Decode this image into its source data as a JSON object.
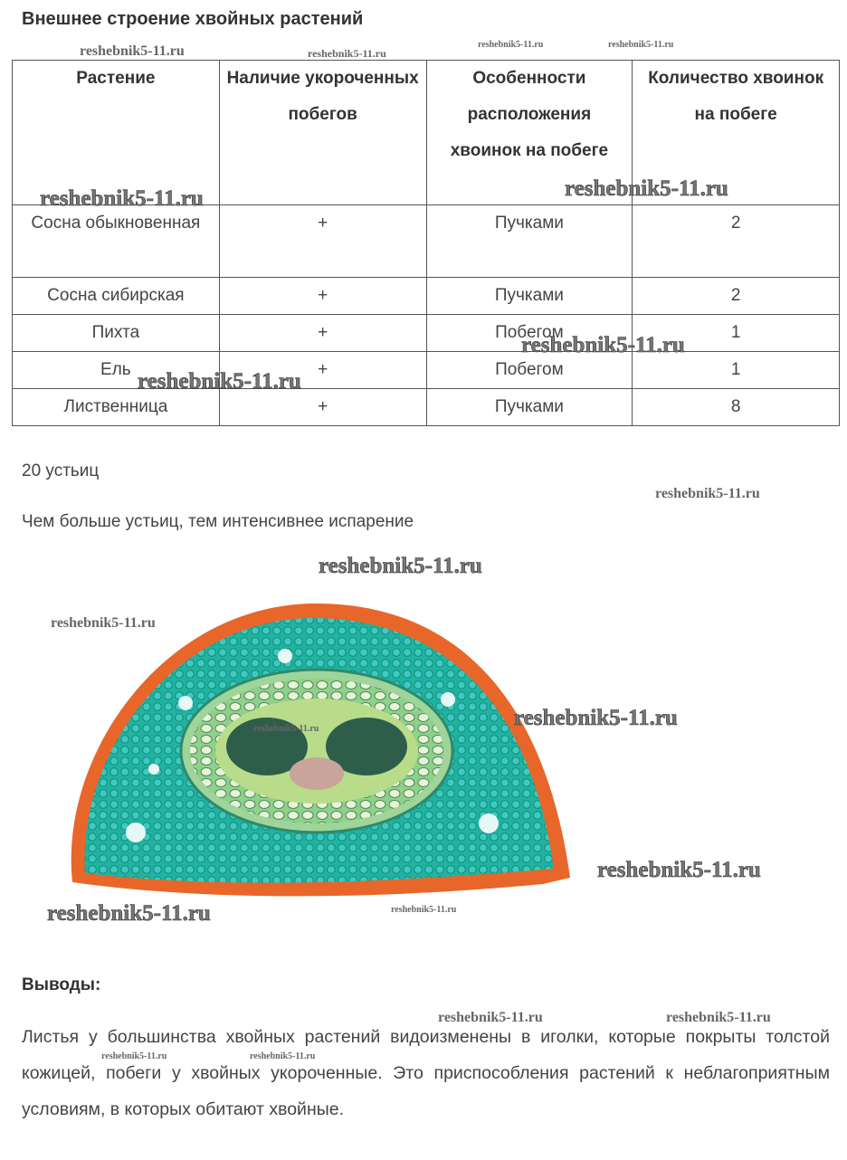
{
  "title": "Внешнее строение хвойных растений",
  "table": {
    "headers": [
      "Растение",
      "Наличие укороченных побегов",
      "Особенности расположения хвоинок на побеге",
      "Количество хвоинок на побеге"
    ],
    "rows": [
      [
        "Сосна обыкновенная",
        "+",
        "Пучками",
        "2"
      ],
      [
        "Сосна сибирская",
        "+",
        "Пучками",
        "2"
      ],
      [
        "Пихта",
        "+",
        "Побегом",
        "1"
      ],
      [
        "Ель",
        "+",
        "Побегом",
        "1"
      ],
      [
        "Лиственница",
        "+",
        "Пучками",
        "8"
      ]
    ]
  },
  "stomata_count": "20 устьиц",
  "stomata_note": "Чем больше устьиц, тем интенсивнее испарение",
  "conclusions_title": "Выводы:",
  "conclusions_text": "Листья у большинства хвойных растений видоизменены в иголки, которые покрыты толстой кожицей,  побеги у хвойных укороченные. Это приспособления растений к неблагоприятным условиям, в которых обитают хвойные.",
  "watermark": "reshebnik5-11.ru",
  "colors": {
    "needle_cortex": "#e8662a",
    "needle_mesophyll": "#1fb3a0",
    "vascular": "#2e5e4a"
  }
}
